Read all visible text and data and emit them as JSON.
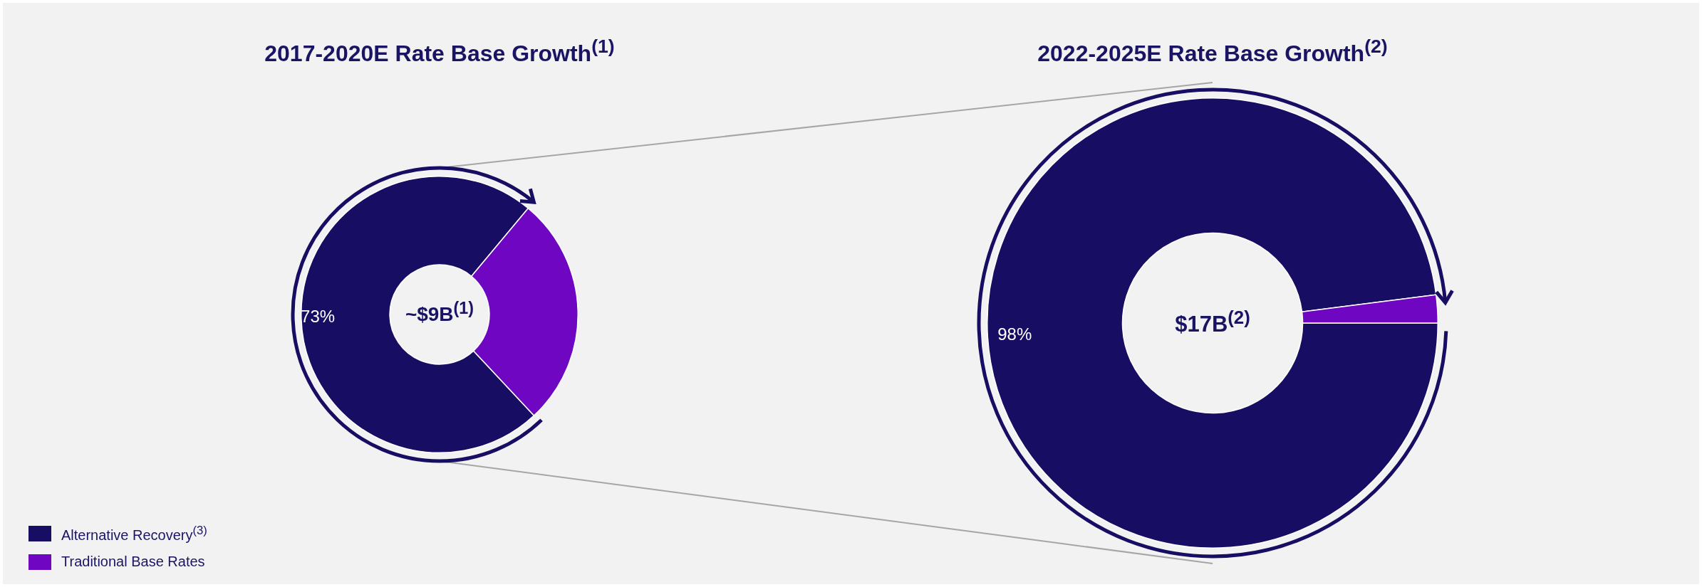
{
  "chart_data": [
    {
      "type": "donut",
      "title": "2017-2020E Rate Base Growth$^{(1)}$",
      "categories": [
        "Alternative Recovery$^{(3)}$",
        "Traditional Base Rates"
      ],
      "values": [
        73,
        27
      ],
      "colors": [
        "#170e63",
        "#6f07c2"
      ],
      "value_labels": [
        "73%",
        null
      ],
      "annotations": [
        "~$9B$^{(1)}$"
      ],
      "legend": "bottom left"
    },
    {
      "type": "donut",
      "title": "2022-2025E Rate Base Growth$^{(2)}$",
      "categories": [
        null,
        null
      ],
      "values": [
        98,
        2
      ],
      "colors": [
        "#170e63",
        "#6f07c2"
      ],
      "value_labels": [
        "98%",
        null
      ],
      "annotations": [
        "$17B$^{(2)}$"
      ]
    }
  ]
}
